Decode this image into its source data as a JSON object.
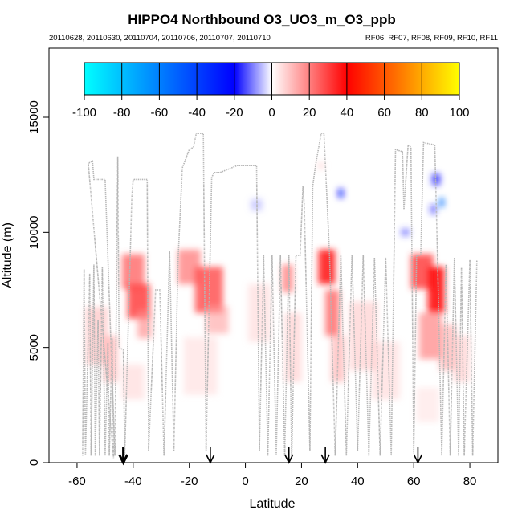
{
  "chart_data": {
    "type": "heatmap",
    "title": "HIPPO4 Northbound O3_UO3_m_O3_ppb",
    "subtitle_left": "20110628, 20110630, 20110704, 20110706, 20110707, 20110710",
    "subtitle_right": "RF06, RF07, RF08, RF09, RF10, RF11",
    "xlabel": "Latitude",
    "ylabel": "Altitude (m)",
    "xlim": [
      -70,
      90
    ],
    "ylim": [
      0,
      18000
    ],
    "xticks": [
      -60,
      -40,
      -20,
      0,
      20,
      40,
      60,
      80
    ],
    "yticks": [
      0,
      5000,
      10000,
      15000
    ],
    "colorbar": {
      "ticks": [
        -100,
        -80,
        -60,
        -40,
        -20,
        0,
        20,
        40,
        60,
        80,
        100
      ],
      "range": [
        -100,
        100
      ],
      "colors": [
        "#00ffff",
        "#0000ff",
        "#ffffff",
        "#ff0000",
        "#ffff00"
      ]
    },
    "arrows_lat": [
      -43.5,
      -12.5,
      15.5,
      28.5,
      61.5
    ],
    "flight_track": [
      [
        -58,
        300
      ],
      [
        -57.5,
        8400
      ],
      [
        -57,
        300
      ],
      [
        -55.5,
        8200
      ],
      [
        -55,
        300
      ],
      [
        -54,
        8600
      ],
      [
        -53.5,
        300
      ],
      [
        -52.5,
        6200
      ],
      [
        -52,
        300
      ],
      [
        -51,
        8500
      ],
      [
        -50,
        300
      ],
      [
        -49,
        5200
      ],
      [
        -48.5,
        300
      ],
      [
        -47.5,
        5400
      ],
      [
        -47,
        200
      ],
      [
        -56,
        13000
      ],
      [
        -54.5,
        13100
      ],
      [
        -54,
        12300
      ],
      [
        -50,
        12300
      ],
      [
        -46.5,
        300
      ],
      [
        -45.5,
        13300
      ],
      [
        -45,
        5000
      ],
      [
        -43.5,
        4900
      ],
      [
        -43,
        300
      ],
      [
        -40.5,
        11500
      ],
      [
        -40,
        12300
      ],
      [
        -35,
        12300
      ],
      [
        -34.5,
        500
      ],
      [
        -32,
        7500
      ],
      [
        -30.5,
        7500
      ],
      [
        -29,
        300
      ],
      [
        -27,
        9200
      ],
      [
        -25.5,
        500
      ],
      [
        -24,
        8800
      ],
      [
        -22.5,
        12800
      ],
      [
        -20,
        13600
      ],
      [
        -18.5,
        13700
      ],
      [
        -17.5,
        14300
      ],
      [
        -15,
        14300
      ],
      [
        -14,
        500
      ],
      [
        -12,
        12400
      ],
      [
        -11,
        12600
      ],
      [
        -9,
        12600
      ],
      [
        -5,
        12800
      ],
      [
        -3,
        12900
      ],
      [
        4,
        12900
      ],
      [
        5,
        500
      ],
      [
        6.5,
        9000
      ],
      [
        8,
        300
      ],
      [
        9.5,
        9000
      ],
      [
        11,
        300
      ],
      [
        12.5,
        9000
      ],
      [
        14,
        300
      ],
      [
        15.5,
        9000
      ],
      [
        16.5,
        200
      ],
      [
        18,
        9000
      ],
      [
        19.5,
        9000
      ],
      [
        20.5,
        12000
      ],
      [
        21,
        11200
      ],
      [
        23,
        500
      ],
      [
        24,
        12000
      ],
      [
        25,
        12900
      ],
      [
        27,
        14300
      ],
      [
        28,
        14300
      ],
      [
        30,
        9000
      ],
      [
        32,
        300
      ],
      [
        34,
        9000
      ],
      [
        36,
        300
      ],
      [
        38,
        9000
      ],
      [
        40,
        500
      ],
      [
        42,
        9000
      ],
      [
        44,
        300
      ],
      [
        46,
        8900
      ],
      [
        48,
        300
      ],
      [
        50,
        8900
      ],
      [
        52,
        300
      ],
      [
        53.5,
        13600
      ],
      [
        56,
        13500
      ],
      [
        56.5,
        11000
      ],
      [
        58,
        13800
      ],
      [
        59,
        13700
      ],
      [
        60,
        400
      ],
      [
        61,
        9000
      ],
      [
        62.5,
        9000
      ],
      [
        63.5,
        13900
      ],
      [
        67.5,
        13800
      ],
      [
        68.5,
        8800
      ],
      [
        70,
        300
      ],
      [
        71.5,
        8600
      ],
      [
        73,
        300
      ],
      [
        74.5,
        8900
      ],
      [
        76,
        300
      ],
      [
        77,
        8500
      ],
      [
        78,
        300
      ],
      [
        80,
        8800
      ],
      [
        81,
        300
      ],
      [
        82.5,
        8800
      ]
    ],
    "cells": [
      {
        "lat": -53,
        "alt": 5500,
        "w": 8,
        "h": 2500,
        "v": 12
      },
      {
        "lat": -48,
        "alt": 4500,
        "w": 5,
        "h": 2000,
        "v": 14
      },
      {
        "lat": -40,
        "alt": 8300,
        "w": 8,
        "h": 1500,
        "v": 25
      },
      {
        "lat": -38,
        "alt": 7000,
        "w": 8,
        "h": 1500,
        "v": 30
      },
      {
        "lat": -36,
        "alt": 6000,
        "w": 5,
        "h": 1200,
        "v": 18
      },
      {
        "lat": -40,
        "alt": 3500,
        "w": 8,
        "h": 1500,
        "v": 8
      },
      {
        "lat": -20,
        "alt": 8500,
        "w": 8,
        "h": 1500,
        "v": 22
      },
      {
        "lat": -13,
        "alt": 7500,
        "w": 10,
        "h": 2000,
        "v": 28
      },
      {
        "lat": -10,
        "alt": 6200,
        "w": 8,
        "h": 1200,
        "v": 15
      },
      {
        "lat": -16,
        "alt": 4200,
        "w": 12,
        "h": 2500,
        "v": 7
      },
      {
        "lat": 5,
        "alt": 6500,
        "w": 8,
        "h": 2500,
        "v": 8
      },
      {
        "lat": 15,
        "alt": 8000,
        "w": 4,
        "h": 1200,
        "v": 22
      },
      {
        "lat": 17,
        "alt": 5000,
        "w": 6,
        "h": 3000,
        "v": 10
      },
      {
        "lat": 29,
        "alt": 8500,
        "w": 6,
        "h": 1500,
        "v": 35
      },
      {
        "lat": 31,
        "alt": 6500,
        "w": 5,
        "h": 2000,
        "v": 25
      },
      {
        "lat": 33,
        "alt": 4500,
        "w": 5,
        "h": 2000,
        "v": 14
      },
      {
        "lat": 42,
        "alt": 5500,
        "w": 10,
        "h": 3000,
        "v": 10
      },
      {
        "lat": 50,
        "alt": 4000,
        "w": 10,
        "h": 2500,
        "v": 8
      },
      {
        "lat": 63,
        "alt": 8300,
        "w": 8,
        "h": 1500,
        "v": 30
      },
      {
        "lat": 68,
        "alt": 7500,
        "w": 6,
        "h": 2000,
        "v": 38
      },
      {
        "lat": 66,
        "alt": 5500,
        "w": 8,
        "h": 2000,
        "v": 20
      },
      {
        "lat": 72,
        "alt": 5000,
        "w": 6,
        "h": 2000,
        "v": 14
      },
      {
        "lat": 77,
        "alt": 4500,
        "w": 6,
        "h": 2000,
        "v": 10
      },
      {
        "lat": 65,
        "alt": 2500,
        "w": 8,
        "h": 1500,
        "v": 6
      },
      {
        "lat": 4,
        "alt": 11200,
        "w": 4,
        "h": 500,
        "v": -8
      },
      {
        "lat": 34,
        "alt": 11700,
        "w": 2,
        "h": 400,
        "v": -25
      },
      {
        "lat": 57,
        "alt": 10000,
        "w": 3,
        "h": 300,
        "v": -15
      },
      {
        "lat": 68,
        "alt": 12300,
        "w": 3,
        "h": 500,
        "v": -20
      },
      {
        "lat": 70,
        "alt": 11300,
        "w": 1.5,
        "h": 400,
        "v": -55
      },
      {
        "lat": 67,
        "alt": 11000,
        "w": 2,
        "h": 400,
        "v": -18
      },
      {
        "lat": 27,
        "alt": 12900,
        "w": 2,
        "h": 300,
        "v": 10
      }
    ]
  }
}
